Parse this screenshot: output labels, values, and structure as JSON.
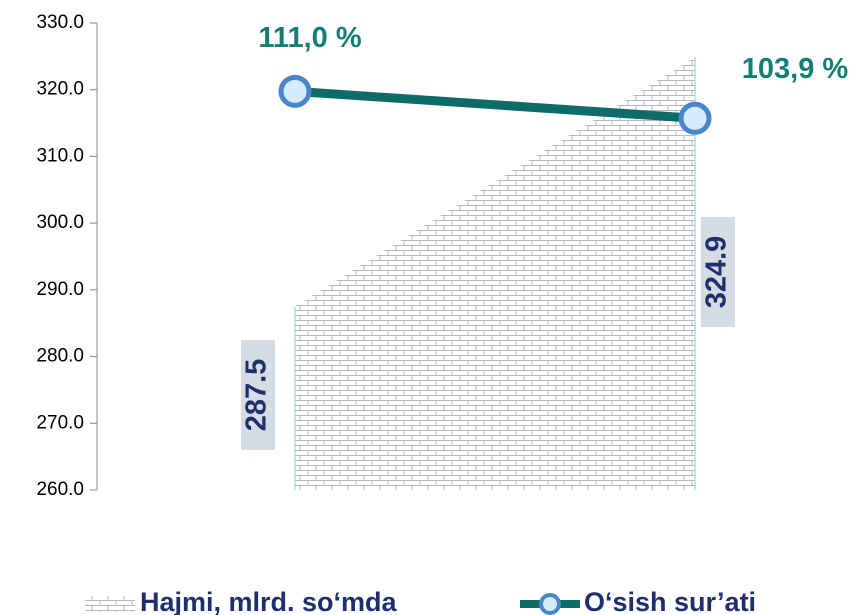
{
  "chart_data": {
    "type": "combo",
    "categories": [
      null,
      null
    ],
    "ylim": [
      260,
      330
    ],
    "yticks": [
      {
        "value": 260,
        "label": "260.0"
      },
      {
        "value": 270,
        "label": "270.0"
      },
      {
        "value": 280,
        "label": "280.0"
      },
      {
        "value": 290,
        "label": "290.0"
      },
      {
        "value": 300,
        "label": "300.0"
      },
      {
        "value": 310,
        "label": "310.0"
      },
      {
        "value": 320,
        "label": "320.0"
      },
      {
        "value": 330,
        "label": "330.0"
      }
    ],
    "y2lim": [
      6,
      129
    ],
    "series": [
      {
        "name": "Hajmi, mlrd. so‘mda",
        "type": "area",
        "color": "#b9b9b9",
        "values": [
          287.5,
          324.9
        ]
      },
      {
        "name": "O‘sish sur’ati",
        "type": "line",
        "axis": "y2",
        "color": "#0e6b68",
        "marker_color": "#4a86c8",
        "values": [
          111.0,
          103.9
        ],
        "value_labels": [
          "111,0 %",
          "103,9 %"
        ]
      }
    ],
    "legend": "bottom"
  }
}
